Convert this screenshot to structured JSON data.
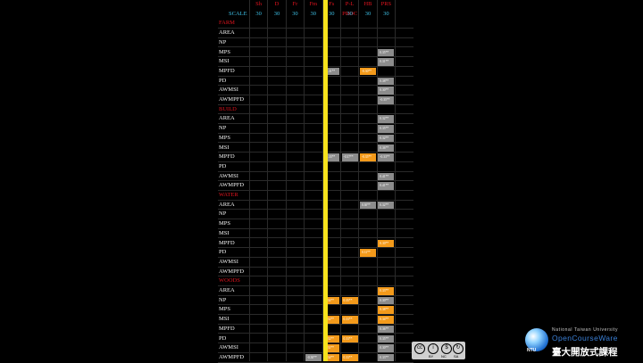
{
  "header": {
    "columns": [
      "Sh",
      "D",
      "Fr",
      "Fm",
      "Fs",
      "P-L PROC",
      "HB",
      "PRS"
    ],
    "scale_label": "SCALE",
    "scale_values": [
      "30",
      "30",
      "30",
      "30",
      "30",
      "30",
      "30",
      "30"
    ]
  },
  "rows": [
    {
      "label": "FARM",
      "category": true,
      "cells": []
    },
    {
      "label": "AREA",
      "cells": []
    },
    {
      "label": "NP",
      "cells": []
    },
    {
      "label": "MPS",
      "cells": [
        {
          "col": 7,
          "color": "gray",
          "text": "0.35**"
        }
      ]
    },
    {
      "label": "MSI",
      "cells": [
        {
          "col": 7,
          "color": "gray",
          "text": "0.31**"
        }
      ]
    },
    {
      "label": "MPFD",
      "cells": [
        {
          "col": 4,
          "color": "gray",
          "text": "-0.31**"
        },
        {
          "col": 6,
          "color": "orange",
          "text": "-0.30**"
        }
      ]
    },
    {
      "label": "PD",
      "cells": [
        {
          "col": 7,
          "color": "gray",
          "text": "0.38**"
        }
      ]
    },
    {
      "label": "AWMSI",
      "cells": [
        {
          "col": 7,
          "color": "gray",
          "text": "0.30**"
        }
      ]
    },
    {
      "label": "AWMPFD",
      "cells": [
        {
          "col": 7,
          "color": "gray",
          "text": "-0.35**"
        }
      ]
    },
    {
      "label": "BUILD",
      "category": true,
      "cells": []
    },
    {
      "label": "AREA",
      "cells": [
        {
          "col": 7,
          "color": "gray",
          "text": "0.32**"
        }
      ]
    },
    {
      "label": "NP",
      "cells": [
        {
          "col": 7,
          "color": "gray",
          "text": "0.35**"
        }
      ]
    },
    {
      "label": "MPS",
      "cells": [
        {
          "col": 7,
          "color": "gray",
          "text": "0.32**"
        }
      ]
    },
    {
      "label": "MSI",
      "cells": [
        {
          "col": 7,
          "color": "gray",
          "text": "0.36**"
        }
      ]
    },
    {
      "label": "MPFD",
      "cells": [
        {
          "col": 4,
          "color": "gray",
          "text": "-0.33**"
        },
        {
          "col": 5,
          "color": "gray",
          "text": "-0.37**"
        },
        {
          "col": 6,
          "color": "orange",
          "text": "-0.35**"
        },
        {
          "col": 7,
          "color": "gray",
          "text": "-0.33**"
        }
      ]
    },
    {
      "label": "PD",
      "cells": []
    },
    {
      "label": "AWMSI",
      "cells": [
        {
          "col": 7,
          "color": "gray",
          "text": "0.41**"
        }
      ]
    },
    {
      "label": "AWMPFD",
      "cells": [
        {
          "col": 7,
          "color": "gray",
          "text": "0.41**"
        }
      ]
    },
    {
      "label": "WATER",
      "category": true,
      "cells": []
    },
    {
      "label": "AREA",
      "cells": [
        {
          "col": 6,
          "color": "gray",
          "text": "0.30**"
        },
        {
          "col": 7,
          "color": "gray",
          "text": "0.32**"
        }
      ]
    },
    {
      "label": "NP",
      "cells": []
    },
    {
      "label": "MPS",
      "cells": []
    },
    {
      "label": "MSI",
      "cells": []
    },
    {
      "label": "MPFD",
      "cells": [
        {
          "col": 7,
          "color": "orange",
          "text": "0.30**"
        }
      ]
    },
    {
      "label": "PD",
      "cells": [
        {
          "col": 6,
          "color": "orange",
          "text": "0.31**"
        }
      ]
    },
    {
      "label": "AWMSI",
      "cells": []
    },
    {
      "label": "AWMPFD",
      "cells": []
    },
    {
      "label": "WOODS",
      "category": true,
      "cells": []
    },
    {
      "label": "AREA",
      "cells": [
        {
          "col": 7,
          "color": "orange",
          "text": "0.33**"
        }
      ]
    },
    {
      "label": "NP",
      "cells": [
        {
          "col": 4,
          "color": "orange",
          "text": "0.34**"
        },
        {
          "col": 5,
          "color": "orange",
          "text": "0.35**"
        },
        {
          "col": 7,
          "color": "gray",
          "text": "0.30**"
        }
      ]
    },
    {
      "label": "MPS",
      "cells": [
        {
          "col": 7,
          "color": "orange",
          "text": "0.38**"
        }
      ]
    },
    {
      "label": "MSI",
      "cells": [
        {
          "col": 4,
          "color": "orange",
          "text": "0.32**"
        },
        {
          "col": 5,
          "color": "orange",
          "text": "0.33**"
        },
        {
          "col": 7,
          "color": "orange",
          "text": "0.34**"
        }
      ]
    },
    {
      "label": "MPFD",
      "cells": [
        {
          "col": 7,
          "color": "gray",
          "text": "0.36**"
        }
      ]
    },
    {
      "label": "PD",
      "cells": [
        {
          "col": 4,
          "color": "orange",
          "text": "0.32**"
        },
        {
          "col": 5,
          "color": "orange",
          "text": "0.33**"
        },
        {
          "col": 7,
          "color": "gray",
          "text": "0.35**"
        }
      ]
    },
    {
      "label": "AWMSI",
      "cells": [
        {
          "col": 4,
          "color": "orange",
          "text": "0.31**"
        },
        {
          "col": 7,
          "color": "gray",
          "text": "0.30**"
        }
      ]
    },
    {
      "label": "AWMPFD",
      "cells": [
        {
          "col": 3,
          "color": "gray",
          "text": "-0.30**"
        },
        {
          "col": 4,
          "color": "orange",
          "text": "0.34**"
        },
        {
          "col": 5,
          "color": "orange",
          "text": "0.33**"
        },
        {
          "col": 7,
          "color": "gray",
          "text": "0.33**"
        }
      ]
    }
  ],
  "colors": {
    "orange": "#f39a1b",
    "gray": "#8c8c8c",
    "yellow_bar": "#f6e21c",
    "header_red": "#e0141e",
    "scale_cyan": "#3ec0e6"
  },
  "license_badge": {
    "icons": [
      "cc-icon",
      "by-icon",
      "nc-icon",
      "sa-icon"
    ],
    "labels": [
      "BY",
      "NC",
      "SA"
    ]
  },
  "logo": {
    "university": "National Taiwan University",
    "brand": "OpenCourseWare",
    "short": "NTU",
    "chinese": "臺大開放式課程"
  }
}
